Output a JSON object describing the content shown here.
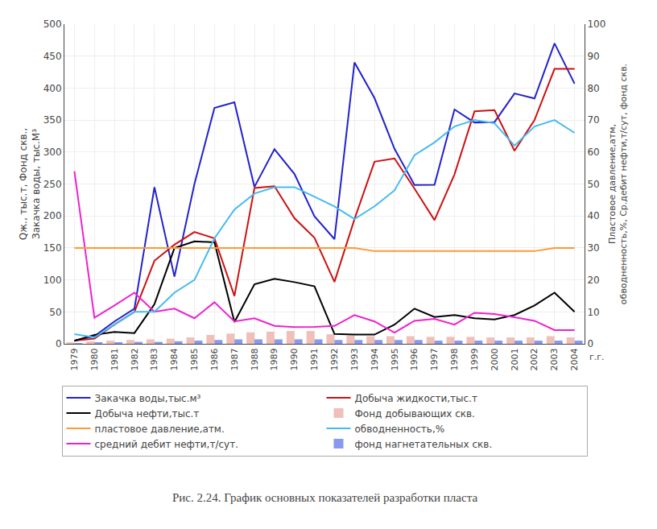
{
  "chart_data": {
    "type": "combo",
    "title": "Рис. 2.24. График основных показателей разработки пласта",
    "ylabel": "Qж., тыс.т, Фонд скв.,\nЗакачка воды, тыс.М³",
    "y2label": "Пластовое давление,атм,\nобводненность,%, Ср.дебит нефти,т/сут, фонд скв.",
    "categories": [
      "1979",
      "1980",
      "1981",
      "1982",
      "1983",
      "1984",
      "1985",
      "1986",
      "1987",
      "1988",
      "1989",
      "1990",
      "1991",
      "1992",
      "1993",
      "1994",
      "1995",
      "1996",
      "1997",
      "1998",
      "1999",
      "2000",
      "2001",
      "2002",
      "2003",
      "2004"
    ],
    "series": [
      {
        "name": "Закачка воды,тыс.м³",
        "type": "line",
        "color": "#2222cc",
        "values": [
          5,
          12,
          35,
          55,
          245,
          105,
          250,
          369,
          377.8,
          245.4,
          304.4,
          265.6,
          199.3,
          163.7,
          440.1,
          384.4,
          305,
          248.5,
          248.7,
          366.5,
          346.2,
          346.8,
          391.6,
          383.7,
          470,
          407
        ]
      },
      {
        "name": "Добыча жидкости,тыс.т",
        "type": "line",
        "color": "#cc1111",
        "values": [
          5,
          8,
          30,
          50,
          130,
          155,
          175,
          165,
          74.8,
          243.8,
          246.6,
          196.4,
          165.9,
          96.8,
          195,
          284.8,
          290,
          242.7,
          193.5,
          265,
          363.6,
          365.6,
          302,
          350,
          430,
          430
        ]
      },
      {
        "name": "Добыча нефти,тыс.т",
        "type": "line",
        "color": "#000000",
        "values": [
          4.7,
          14,
          18.6,
          16.8,
          62.0,
          149.7,
          160.3,
          158.8,
          34.0,
          93.2,
          101.6,
          96.5,
          90,
          15.4,
          14.4,
          14.4,
          30,
          55,
          42,
          45,
          40,
          38,
          45,
          60,
          80,
          50
        ]
      },
      {
        "name": "Фонд добывающих скв.",
        "type": "bar",
        "color": "#f0c0b8",
        "values": [
          2,
          4,
          5,
          6,
          7,
          8,
          10,
          14,
          16,
          18,
          19,
          20,
          20,
          15,
          13,
          12,
          12,
          12,
          11,
          11,
          11,
          10,
          10,
          10,
          12,
          10
        ]
      },
      {
        "name": "пластовое давление,атм.",
        "type": "line",
        "axis": "y2",
        "color": "#ff9933",
        "values": [
          30,
          30,
          30,
          30,
          30,
          30,
          30,
          30,
          30,
          30,
          30,
          30,
          30,
          30,
          30,
          29,
          29,
          29,
          29,
          29,
          29,
          29,
          29,
          29,
          30,
          30
        ]
      },
      {
        "name": "обводненность,%",
        "type": "line",
        "axis": "y2",
        "color": "#44bbee",
        "values": [
          3,
          2,
          6,
          10,
          10,
          16,
          20,
          33,
          42,
          47,
          49,
          49,
          46,
          43,
          39,
          43,
          48,
          59,
          63,
          68,
          70,
          69,
          62,
          68,
          70,
          66
        ]
      },
      {
        "name": "средний дебит нефти,т/сут.",
        "type": "line",
        "color": "#ee22cc",
        "values": [
          269.9,
          40.9,
          60,
          80,
          50,
          55,
          40,
          65,
          35,
          40,
          28,
          26,
          26.5,
          28,
          45,
          35,
          17.5,
          36,
          39,
          30,
          48.5,
          46.6,
          41.6,
          36,
          21.5,
          21.5
        ]
      },
      {
        "name": "фонд нагнетательных скв.",
        "type": "bar",
        "color": "#8899ee",
        "values": [
          1,
          2,
          2,
          3,
          3,
          4,
          5,
          6,
          7,
          7,
          7,
          7,
          7,
          6,
          6,
          6,
          6,
          6,
          5,
          5,
          5,
          5,
          5,
          5,
          5,
          5
        ]
      }
    ],
    "ylim": [
      0,
      500
    ],
    "yticks": [
      0,
      50,
      100,
      150,
      200,
      250,
      300,
      350,
      400,
      450,
      500
    ],
    "y2lim": [
      0,
      100
    ],
    "y2ticks": [
      0,
      10,
      20,
      30,
      40,
      50,
      60,
      70,
      80,
      90,
      100
    ],
    "grid": true,
    "legend": "bottom",
    "annotations": [
      {
        "text": "г.г."
      }
    ]
  }
}
